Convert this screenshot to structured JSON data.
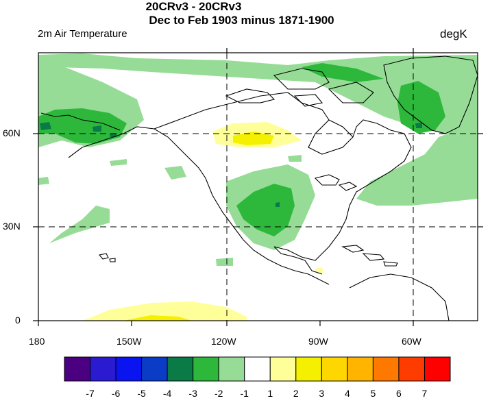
{
  "title": {
    "line1": "20CRv3 - 20CRv3",
    "line2": "Dec to Feb 1903 minus 1871-1900"
  },
  "variable_label": "2m Air Temperature",
  "units_label": "degK",
  "axes": {
    "lon_ticks": [
      "180",
      "150W",
      "120W",
      "90W",
      "60W"
    ],
    "lat_ticks": [
      "60N",
      "30N",
      "0"
    ]
  },
  "colorbar": {
    "labels": [
      "-7",
      "-6",
      "-5",
      "-4",
      "-3",
      "-2",
      "-1",
      "1",
      "2",
      "3",
      "4",
      "5",
      "6",
      "7"
    ],
    "colors": [
      "#4b0082",
      "#2a1bd0",
      "#0a14f0",
      "#0a3cc8",
      "#0a7a46",
      "#2db83c",
      "#96dc96",
      "#ffffff",
      "#ffff9a",
      "#f5f000",
      "#ffd700",
      "#ffb400",
      "#ff7800",
      "#ff3c00",
      "#ff0000"
    ]
  },
  "map": {
    "projection": "cylindrical equidistant",
    "lon_range": [
      "180",
      "35W"
    ],
    "lat_range": [
      "0",
      "85N"
    ],
    "grid_lines": [
      "120W",
      "60W",
      "60N",
      "30N"
    ]
  }
}
